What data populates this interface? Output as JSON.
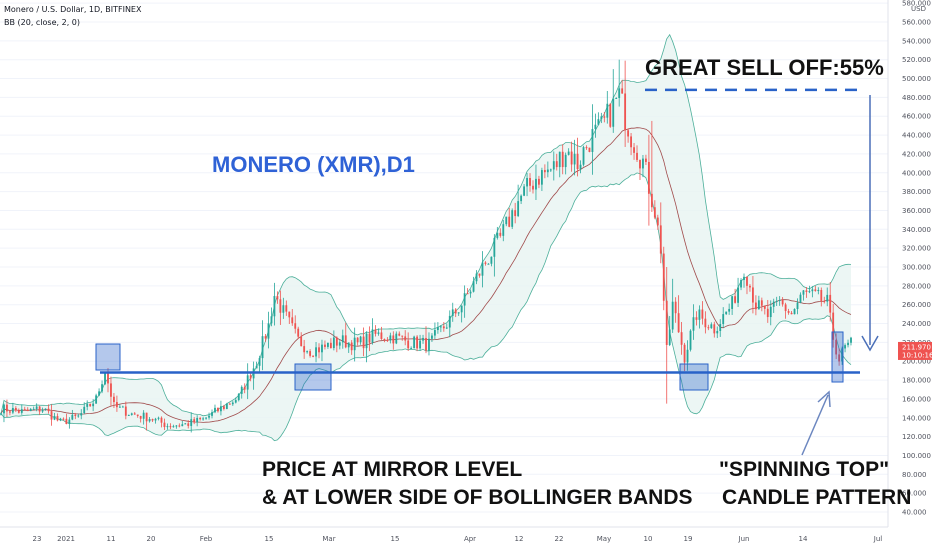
{
  "header": {
    "symbol_line": "Monero / U.S. Dollar, 1D, BITFINEX",
    "indicator_line": "BB (20, close, 2, 0)"
  },
  "annotations": {
    "title": "MONERO (XMR),D1",
    "sell_off": "GREAT SELL OFF:55%",
    "mirror_line1": "PRICE AT MIRROR LEVEL",
    "mirror_line2": "& AT LOWER SIDE OF BOLLINGER BANDS",
    "spin_line1": "\"SPINNING TOP\"",
    "spin_line2": "CANDLE PATTERN"
  },
  "price_badge": {
    "price": "211.970",
    "countdown": "10:10:16"
  },
  "colors": {
    "up": "#26a69a",
    "down": "#ef5350",
    "band": "#4caf9a",
    "band_fill": "#e7f4f1",
    "basis": "#a04a4a",
    "annotation_blue": "#2962c8",
    "title_blue": "#2f62d6"
  },
  "chart_data": {
    "type": "candlestick",
    "x_ticks": [
      "23",
      "2021",
      "11",
      "20",
      "Feb",
      "15",
      "Mar",
      "15",
      "Apr",
      "12",
      "22",
      "May",
      "10",
      "19",
      "Jun",
      "14",
      "Jul"
    ],
    "y_axis_unit": "USD",
    "y_ticks": [
      40,
      60,
      80,
      100,
      120,
      140,
      160,
      180,
      200,
      220,
      240,
      260,
      280,
      300,
      320,
      340,
      360,
      380,
      400,
      420,
      440,
      460,
      480,
      500,
      520,
      540,
      560,
      580
    ],
    "y_tick_format": "000",
    "ylim": [
      30,
      590
    ],
    "mirror_level": 188,
    "sell_off_top": 488,
    "last_price": 211.97,
    "price_anchors": [
      [
        0,
        150
      ],
      [
        8,
        146
      ],
      [
        14,
        150
      ],
      [
        20,
        135
      ],
      [
        26,
        141
      ],
      [
        32,
        160
      ],
      [
        35,
        190
      ],
      [
        38,
        152
      ],
      [
        44,
        144
      ],
      [
        50,
        140
      ],
      [
        56,
        132
      ],
      [
        62,
        133
      ],
      [
        68,
        138
      ],
      [
        74,
        150
      ],
      [
        80,
        162
      ],
      [
        86,
        200
      ],
      [
        90,
        238
      ],
      [
        92,
        270
      ],
      [
        95,
        252
      ],
      [
        100,
        222
      ],
      [
        104,
        212
      ],
      [
        108,
        214
      ],
      [
        114,
        222
      ],
      [
        120,
        218
      ],
      [
        126,
        228
      ],
      [
        132,
        226
      ],
      [
        138,
        220
      ],
      [
        144,
        218
      ],
      [
        150,
        240
      ],
      [
        156,
        265
      ],
      [
        162,
        300
      ],
      [
        168,
        330
      ],
      [
        174,
        370
      ],
      [
        180,
        395
      ],
      [
        186,
        405
      ],
      [
        190,
        425
      ],
      [
        194,
        410
      ],
      [
        198,
        435
      ],
      [
        202,
        447
      ],
      [
        206,
        470
      ],
      [
        208,
        482
      ],
      [
        210,
        460
      ],
      [
        212,
        440
      ],
      [
        216,
        412
      ],
      [
        220,
        360
      ],
      [
        222,
        320
      ],
      [
        224,
        210
      ],
      [
        226,
        260
      ],
      [
        230,
        205
      ],
      [
        234,
        250
      ],
      [
        240,
        235
      ],
      [
        246,
        260
      ],
      [
        250,
        300
      ],
      [
        254,
        260
      ],
      [
        258,
        248
      ],
      [
        262,
        262
      ],
      [
        266,
        250
      ],
      [
        270,
        272
      ],
      [
        274,
        268
      ],
      [
        278,
        262
      ],
      [
        280,
        225
      ],
      [
        282,
        202
      ],
      [
        284,
        214
      ],
      [
        286,
        218
      ]
    ],
    "bb_period": 20
  }
}
